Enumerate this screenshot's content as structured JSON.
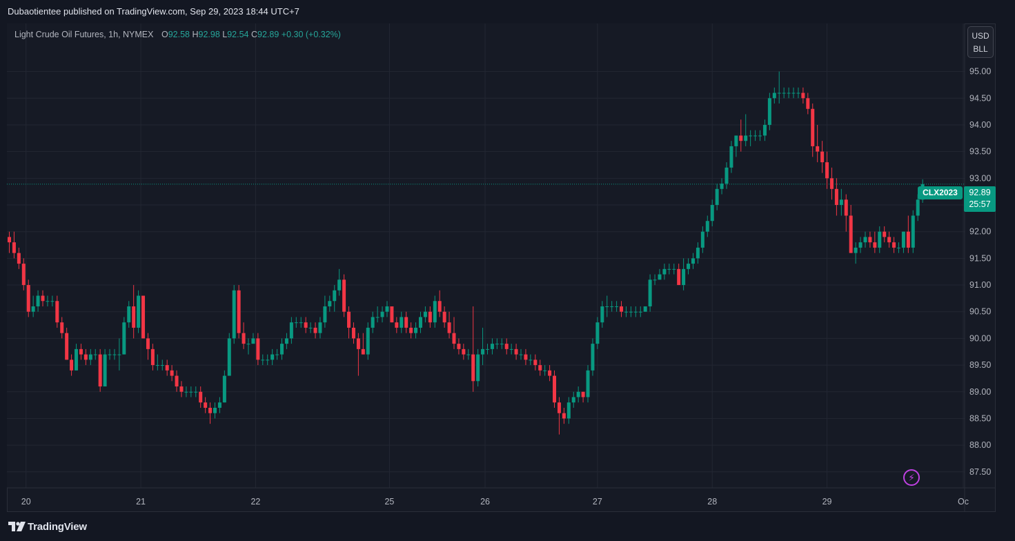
{
  "header": {
    "publisher_text": "Dubaotientee published on TradingView.com, Sep 29, 2023 18:44 UTC+7"
  },
  "legend": {
    "title": "Light Crude Oil Futures, 1h, NYMEX",
    "open_label": "O",
    "open": "92.58",
    "high_label": "H",
    "high": "92.98",
    "low_label": "L",
    "low": "92.54",
    "close_label": "C",
    "close": "92.89",
    "change": "+0.30 (+0.32%)"
  },
  "currency": {
    "line1": "USD",
    "line2": "BLL"
  },
  "last_price": {
    "symbol": "CLX2023",
    "price": "92.89",
    "countdown": "25:57"
  },
  "footer": {
    "brand": "TradingView"
  },
  "icons": {
    "alert": "lightning-icon",
    "logo": "tradingview-logo-icon"
  },
  "colors": {
    "up": "#089981",
    "down": "#f23645",
    "background": "#161a25",
    "grid": "#232733",
    "text": "#b2b5be"
  },
  "chart_data": {
    "type": "candlestick",
    "ylim": [
      87.2,
      95.9
    ],
    "y_ticks": [
      "95.00",
      "94.50",
      "94.00",
      "93.50",
      "93.00",
      "92.50",
      "92.00",
      "91.50",
      "91.00",
      "90.50",
      "90.00",
      "89.50",
      "89.00",
      "88.50",
      "88.00",
      "87.50"
    ],
    "x_ticks": [
      {
        "label": "20",
        "bar": 3.5
      },
      {
        "label": "21",
        "bar": 27.5
      },
      {
        "label": "22",
        "bar": 51.5
      },
      {
        "label": "25",
        "bar": 79.5
      },
      {
        "label": "26",
        "bar": 99.5
      },
      {
        "label": "27",
        "bar": 123
      },
      {
        "label": "28",
        "bar": 147
      },
      {
        "label": "29",
        "bar": 171
      },
      {
        "label": "Oc",
        "bar": 199.5
      }
    ],
    "grid": true,
    "last_price_line": 92.89,
    "candles": [
      [
        91.9,
        92.0,
        91.6,
        91.8
      ],
      [
        91.8,
        92.0,
        91.5,
        91.6
      ],
      [
        91.6,
        91.7,
        91.3,
        91.4
      ],
      [
        91.4,
        91.5,
        90.9,
        91.0
      ],
      [
        91.0,
        91.1,
        90.4,
        90.5
      ],
      [
        90.5,
        90.8,
        90.4,
        90.6
      ],
      [
        90.6,
        90.9,
        90.5,
        90.8
      ],
      [
        90.8,
        90.9,
        90.6,
        90.7
      ],
      [
        90.7,
        90.8,
        90.6,
        90.7
      ],
      [
        90.7,
        90.8,
        90.6,
        90.7
      ],
      [
        90.7,
        90.8,
        90.2,
        90.3
      ],
      [
        90.3,
        90.4,
        90.0,
        90.1
      ],
      [
        90.1,
        90.2,
        89.6,
        89.6
      ],
      [
        89.6,
        89.7,
        89.3,
        89.4
      ],
      [
        89.4,
        89.9,
        89.4,
        89.8
      ],
      [
        89.8,
        89.9,
        89.6,
        89.7
      ],
      [
        89.7,
        89.8,
        89.5,
        89.6
      ],
      [
        89.6,
        89.8,
        89.5,
        89.7
      ],
      [
        89.7,
        89.8,
        89.6,
        89.7
      ],
      [
        89.7,
        89.8,
        89.0,
        89.1
      ],
      [
        89.1,
        89.8,
        89.1,
        89.7
      ],
      [
        89.7,
        89.8,
        89.6,
        89.7
      ],
      [
        89.7,
        89.8,
        89.6,
        89.7
      ],
      [
        89.7,
        90.0,
        89.4,
        89.7
      ],
      [
        89.7,
        90.4,
        89.7,
        90.3
      ],
      [
        90.3,
        90.7,
        90.2,
        90.6
      ],
      [
        90.6,
        91.0,
        90.0,
        90.2
      ],
      [
        90.2,
        90.9,
        90.1,
        90.8
      ],
      [
        90.8,
        90.8,
        90.0,
        90.0
      ],
      [
        90.0,
        90.1,
        89.6,
        89.8
      ],
      [
        89.8,
        89.9,
        89.4,
        89.5
      ],
      [
        89.5,
        89.7,
        89.4,
        89.5
      ],
      [
        89.5,
        89.6,
        89.4,
        89.5
      ],
      [
        89.5,
        89.6,
        89.3,
        89.4
      ],
      [
        89.4,
        89.5,
        89.2,
        89.3
      ],
      [
        89.3,
        89.4,
        89.0,
        89.1
      ],
      [
        89.1,
        89.2,
        88.9,
        89.0
      ],
      [
        89.0,
        89.1,
        88.9,
        89.0
      ],
      [
        89.0,
        89.1,
        88.9,
        89.0
      ],
      [
        89.0,
        89.1,
        88.9,
        89.0
      ],
      [
        89.0,
        89.1,
        88.7,
        88.8
      ],
      [
        88.8,
        88.9,
        88.6,
        88.7
      ],
      [
        88.7,
        88.8,
        88.4,
        88.6
      ],
      [
        88.6,
        88.8,
        88.5,
        88.7
      ],
      [
        88.7,
        88.9,
        88.6,
        88.8
      ],
      [
        88.8,
        89.4,
        88.8,
        89.3
      ],
      [
        89.3,
        90.1,
        89.3,
        90.0
      ],
      [
        90.0,
        91.0,
        89.9,
        90.9
      ],
      [
        90.9,
        91.0,
        90.0,
        90.1
      ],
      [
        90.1,
        90.3,
        89.8,
        89.9
      ],
      [
        89.9,
        90.0,
        89.7,
        89.9
      ],
      [
        89.9,
        90.1,
        89.9,
        90.0
      ],
      [
        90.0,
        90.1,
        89.5,
        89.6
      ],
      [
        89.6,
        89.7,
        89.5,
        89.6
      ],
      [
        89.6,
        89.7,
        89.5,
        89.6
      ],
      [
        89.6,
        89.8,
        89.5,
        89.7
      ],
      [
        89.7,
        89.8,
        89.6,
        89.7
      ],
      [
        89.7,
        90.0,
        89.6,
        89.9
      ],
      [
        89.9,
        90.1,
        89.8,
        90.0
      ],
      [
        90.0,
        90.4,
        89.9,
        90.3
      ],
      [
        90.3,
        90.4,
        90.2,
        90.3
      ],
      [
        90.3,
        90.4,
        90.2,
        90.3
      ],
      [
        90.3,
        90.4,
        90.1,
        90.2
      ],
      [
        90.2,
        90.3,
        90.1,
        90.2
      ],
      [
        90.2,
        90.3,
        90.0,
        90.1
      ],
      [
        90.1,
        90.4,
        90.0,
        90.3
      ],
      [
        90.3,
        90.8,
        90.2,
        90.6
      ],
      [
        90.6,
        90.8,
        90.5,
        90.7
      ],
      [
        90.7,
        91.0,
        90.5,
        90.9
      ],
      [
        90.9,
        91.3,
        90.8,
        91.1
      ],
      [
        91.1,
        91.2,
        90.4,
        90.5
      ],
      [
        90.5,
        90.6,
        90.0,
        90.2
      ],
      [
        90.2,
        90.3,
        89.9,
        90.0
      ],
      [
        90.0,
        90.1,
        89.3,
        89.8
      ],
      [
        89.8,
        90.1,
        89.7,
        89.7
      ],
      [
        89.7,
        90.3,
        89.6,
        90.2
      ],
      [
        90.2,
        90.5,
        90.1,
        90.4
      ],
      [
        90.4,
        90.6,
        90.3,
        90.4
      ],
      [
        90.4,
        90.6,
        90.3,
        90.5
      ],
      [
        90.5,
        90.7,
        90.4,
        90.6
      ],
      [
        90.6,
        90.6,
        90.3,
        90.3
      ],
      [
        90.3,
        90.4,
        90.1,
        90.2
      ],
      [
        90.2,
        90.5,
        90.1,
        90.4
      ],
      [
        90.4,
        90.5,
        90.1,
        90.2
      ],
      [
        90.2,
        90.3,
        90.0,
        90.1
      ],
      [
        90.1,
        90.3,
        90.0,
        90.2
      ],
      [
        90.2,
        90.5,
        90.1,
        90.4
      ],
      [
        90.4,
        90.6,
        90.3,
        90.5
      ],
      [
        90.5,
        90.6,
        90.2,
        90.3
      ],
      [
        90.3,
        90.8,
        90.2,
        90.7
      ],
      [
        90.7,
        90.9,
        90.4,
        90.5
      ],
      [
        90.5,
        90.6,
        90.2,
        90.3
      ],
      [
        90.3,
        90.5,
        90.0,
        90.1
      ],
      [
        90.1,
        90.4,
        89.8,
        89.9
      ],
      [
        89.9,
        90.0,
        89.7,
        89.8
      ],
      [
        89.8,
        89.9,
        89.6,
        89.7
      ],
      [
        89.7,
        89.8,
        89.6,
        89.7
      ],
      [
        89.7,
        90.6,
        89.0,
        89.2
      ],
      [
        89.2,
        89.8,
        89.1,
        89.7
      ],
      [
        89.7,
        90.2,
        89.5,
        89.8
      ],
      [
        89.8,
        89.9,
        89.7,
        89.8
      ],
      [
        89.8,
        90.0,
        89.7,
        89.9
      ],
      [
        89.9,
        90.0,
        89.8,
        89.9
      ],
      [
        89.9,
        90.0,
        89.8,
        89.9
      ],
      [
        89.9,
        90.0,
        89.7,
        89.8
      ],
      [
        89.8,
        89.9,
        89.7,
        89.8
      ],
      [
        89.8,
        89.9,
        89.6,
        89.7
      ],
      [
        89.7,
        89.8,
        89.6,
        89.7
      ],
      [
        89.7,
        89.8,
        89.5,
        89.6
      ],
      [
        89.6,
        89.7,
        89.5,
        89.6
      ],
      [
        89.6,
        89.7,
        89.4,
        89.5
      ],
      [
        89.5,
        89.6,
        89.3,
        89.4
      ],
      [
        89.4,
        89.5,
        89.3,
        89.4
      ],
      [
        89.4,
        89.5,
        89.2,
        89.3
      ],
      [
        89.3,
        89.4,
        88.7,
        88.8
      ],
      [
        88.8,
        88.9,
        88.2,
        88.6
      ],
      [
        88.6,
        88.7,
        88.4,
        88.5
      ],
      [
        88.5,
        88.9,
        88.4,
        88.8
      ],
      [
        88.8,
        89.0,
        88.7,
        88.9
      ],
      [
        88.9,
        89.1,
        88.8,
        89.0
      ],
      [
        89.0,
        89.0,
        88.8,
        88.9
      ],
      [
        88.9,
        89.5,
        88.8,
        89.4
      ],
      [
        89.4,
        90.0,
        89.3,
        89.9
      ],
      [
        89.9,
        90.4,
        89.8,
        90.3
      ],
      [
        90.3,
        90.7,
        90.2,
        90.6
      ],
      [
        90.6,
        90.8,
        90.4,
        90.6
      ],
      [
        90.6,
        90.7,
        90.5,
        90.6
      ],
      [
        90.6,
        90.7,
        90.5,
        90.6
      ],
      [
        90.6,
        90.7,
        90.4,
        90.5
      ],
      [
        90.5,
        90.6,
        90.4,
        90.5
      ],
      [
        90.5,
        90.6,
        90.4,
        90.5
      ],
      [
        90.5,
        90.6,
        90.4,
        90.5
      ],
      [
        90.5,
        90.6,
        90.4,
        90.5
      ],
      [
        90.5,
        90.6,
        90.5,
        90.6
      ],
      [
        90.6,
        91.2,
        90.5,
        91.1
      ],
      [
        91.1,
        91.2,
        91.0,
        91.1
      ],
      [
        91.1,
        91.3,
        91.1,
        91.2
      ],
      [
        91.2,
        91.4,
        91.1,
        91.3
      ],
      [
        91.3,
        91.4,
        91.2,
        91.3
      ],
      [
        91.3,
        91.4,
        91.2,
        91.3
      ],
      [
        91.3,
        91.4,
        91.0,
        91.0
      ],
      [
        91.0,
        91.5,
        90.9,
        91.3
      ],
      [
        91.3,
        91.5,
        91.2,
        91.4
      ],
      [
        91.4,
        91.6,
        91.3,
        91.5
      ],
      [
        91.5,
        91.8,
        91.4,
        91.7
      ],
      [
        91.7,
        92.1,
        91.6,
        92.0
      ],
      [
        92.0,
        92.3,
        91.9,
        92.2
      ],
      [
        92.2,
        92.6,
        92.1,
        92.5
      ],
      [
        92.5,
        92.9,
        92.4,
        92.8
      ],
      [
        92.8,
        93.0,
        92.7,
        92.9
      ],
      [
        92.9,
        93.3,
        92.8,
        93.2
      ],
      [
        93.2,
        93.7,
        93.1,
        93.6
      ],
      [
        93.6,
        93.8,
        93.4,
        93.8
      ],
      [
        93.8,
        94.1,
        93.5,
        93.7
      ],
      [
        93.7,
        94.2,
        93.6,
        93.8
      ],
      [
        93.8,
        93.9,
        93.6,
        93.8
      ],
      [
        93.8,
        93.9,
        93.7,
        93.8
      ],
      [
        93.8,
        93.9,
        93.7,
        93.8
      ],
      [
        93.8,
        94.1,
        93.7,
        94.0
      ],
      [
        94.0,
        94.6,
        93.9,
        94.5
      ],
      [
        94.5,
        94.7,
        94.4,
        94.6
      ],
      [
        94.6,
        95.0,
        94.4,
        94.6
      ],
      [
        94.6,
        94.7,
        94.5,
        94.6
      ],
      [
        94.6,
        94.7,
        94.5,
        94.6
      ],
      [
        94.6,
        94.7,
        94.5,
        94.6
      ],
      [
        94.6,
        94.7,
        94.5,
        94.6
      ],
      [
        94.6,
        94.7,
        94.4,
        94.5
      ],
      [
        94.5,
        94.6,
        94.2,
        94.3
      ],
      [
        94.3,
        94.4,
        93.4,
        93.6
      ],
      [
        93.6,
        94.0,
        93.3,
        93.5
      ],
      [
        93.5,
        93.7,
        93.1,
        93.3
      ],
      [
        93.3,
        93.5,
        92.8,
        93.0
      ],
      [
        93.0,
        93.2,
        92.6,
        92.8
      ],
      [
        92.8,
        93.0,
        92.3,
        92.5
      ],
      [
        92.5,
        92.8,
        92.3,
        92.6
      ],
      [
        92.6,
        92.7,
        92.0,
        92.3
      ],
      [
        92.3,
        92.5,
        91.6,
        91.6
      ],
      [
        91.6,
        91.8,
        91.4,
        91.7
      ],
      [
        91.7,
        91.9,
        91.6,
        91.8
      ],
      [
        91.8,
        92.0,
        91.7,
        91.9
      ],
      [
        91.9,
        92.0,
        91.7,
        91.8
      ],
      [
        91.8,
        92.0,
        91.6,
        91.7
      ],
      [
        91.7,
        92.1,
        91.6,
        92.0
      ],
      [
        92.0,
        92.1,
        91.8,
        91.9
      ],
      [
        91.9,
        92.0,
        91.7,
        91.8
      ],
      [
        91.8,
        91.9,
        91.6,
        91.7
      ],
      [
        91.7,
        91.8,
        91.6,
        91.7
      ],
      [
        91.7,
        92.0,
        91.6,
        92.0
      ],
      [
        92.0,
        92.3,
        91.6,
        91.7
      ],
      [
        91.7,
        92.4,
        91.6,
        92.3
      ],
      [
        92.3,
        92.7,
        92.2,
        92.6
      ],
      [
        92.6,
        92.98,
        92.54,
        92.89
      ]
    ]
  }
}
